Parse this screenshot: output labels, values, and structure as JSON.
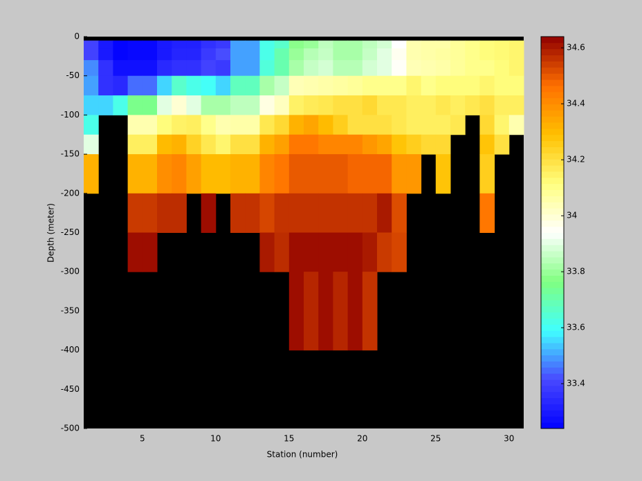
{
  "chart_data": {
    "type": "heatmap",
    "xlabel": "Station (number)",
    "ylabel": "Depth (meter)",
    "x_edges": [
      1,
      2,
      3,
      4,
      5,
      6,
      7,
      8,
      9,
      10,
      11,
      12,
      13,
      14,
      15,
      16,
      17,
      18,
      19,
      20,
      21,
      22,
      23,
      24,
      25,
      26,
      27,
      28,
      29,
      30,
      31
    ],
    "y_edges": [
      0,
      -5,
      -15,
      -30,
      -50,
      -75,
      -100,
      -125,
      -150,
      -200,
      -250,
      -300,
      -400,
      -500
    ],
    "xlim": [
      1,
      31
    ],
    "ylim": [
      -500,
      0
    ],
    "xticks": [
      5,
      10,
      15,
      20,
      25,
      30
    ],
    "yticks": [
      0,
      -50,
      -100,
      -150,
      -200,
      -250,
      -300,
      -350,
      -400,
      -450,
      -500
    ],
    "clim": [
      33.24,
      34.64
    ],
    "cticks": [
      33.4,
      33.6,
      33.8,
      34,
      34.2,
      34.4,
      34.6
    ],
    "colormap": [
      "#0000ff",
      "#4848ff",
      "#40ffff",
      "#80ff80",
      "#ffffff",
      "#ffff80",
      "#ffc000",
      "#ff7000",
      "#900000"
    ],
    "missing_color": "#000000",
    "z": [
      [
        null,
        null,
        null,
        null,
        null,
        null,
        null,
        null,
        null,
        null,
        null,
        null,
        null,
        null,
        null,
        null,
        null,
        null,
        null,
        null,
        null,
        null,
        null,
        null,
        null,
        null,
        null,
        null,
        null,
        null
      ],
      [
        33.4,
        33.3,
        33.25,
        33.26,
        33.26,
        33.3,
        33.32,
        33.32,
        33.36,
        33.38,
        33.5,
        33.5,
        33.62,
        33.66,
        33.78,
        33.8,
        33.85,
        33.82,
        33.82,
        33.85,
        33.88,
        33.94,
        34.05,
        34.06,
        34.06,
        34.08,
        34.1,
        34.12,
        34.13,
        34.14
      ],
      [
        33.4,
        33.3,
        33.25,
        33.26,
        33.26,
        33.3,
        33.33,
        33.33,
        33.38,
        33.42,
        33.5,
        33.5,
        33.62,
        33.7,
        33.8,
        33.84,
        33.86,
        33.82,
        33.82,
        33.86,
        33.9,
        33.96,
        34.05,
        34.06,
        34.07,
        34.08,
        34.1,
        34.12,
        34.13,
        34.14
      ],
      [
        33.48,
        33.36,
        33.28,
        33.28,
        33.28,
        33.34,
        33.36,
        33.36,
        33.4,
        33.38,
        33.5,
        33.5,
        33.64,
        33.7,
        33.82,
        33.86,
        33.88,
        33.84,
        33.84,
        33.88,
        33.9,
        33.95,
        34.04,
        34.05,
        34.06,
        34.08,
        34.1,
        34.1,
        34.12,
        34.14
      ],
      [
        33.5,
        33.36,
        33.34,
        33.45,
        33.45,
        33.55,
        33.66,
        33.62,
        33.6,
        33.55,
        33.68,
        33.68,
        33.82,
        33.86,
        34.04,
        34.05,
        34.06,
        34.07,
        34.08,
        34.1,
        34.1,
        34.1,
        34.14,
        34.1,
        34.12,
        34.12,
        34.12,
        34.14,
        34.12,
        34.12
      ],
      [
        33.55,
        33.55,
        33.62,
        33.75,
        33.75,
        33.9,
        34.0,
        33.9,
        33.82,
        33.82,
        33.85,
        33.85,
        33.98,
        34.03,
        34.15,
        34.17,
        34.18,
        34.2,
        34.2,
        34.22,
        34.18,
        34.18,
        34.16,
        34.16,
        34.18,
        34.16,
        34.18,
        34.2,
        34.16,
        34.16
      ],
      [
        33.62,
        null,
        null,
        34.05,
        34.05,
        34.12,
        34.15,
        34.16,
        34.1,
        34.05,
        34.06,
        34.06,
        34.18,
        34.22,
        34.32,
        34.35,
        34.3,
        34.25,
        34.2,
        34.2,
        34.2,
        34.18,
        34.16,
        34.16,
        34.16,
        34.18,
        null,
        34.22,
        34.14,
        34.05
      ],
      [
        33.9,
        null,
        null,
        34.16,
        34.16,
        34.3,
        34.32,
        34.24,
        34.18,
        34.14,
        34.2,
        34.2,
        34.32,
        34.36,
        34.45,
        34.45,
        34.42,
        34.42,
        34.42,
        34.38,
        34.35,
        34.28,
        34.25,
        34.22,
        34.22,
        null,
        null,
        34.28,
        34.2,
        null
      ],
      [
        34.32,
        null,
        null,
        34.32,
        34.32,
        34.4,
        34.42,
        34.36,
        34.3,
        34.3,
        34.32,
        34.32,
        34.42,
        34.45,
        34.5,
        34.5,
        34.5,
        34.5,
        34.48,
        34.48,
        34.48,
        34.38,
        34.38,
        null,
        34.28,
        null,
        null,
        34.25,
        null,
        null
      ],
      [
        null,
        null,
        null,
        34.55,
        34.55,
        34.57,
        34.57,
        null,
        34.62,
        null,
        34.56,
        34.56,
        34.53,
        34.56,
        34.56,
        34.56,
        34.56,
        34.56,
        34.56,
        34.56,
        34.6,
        34.52,
        null,
        null,
        null,
        null,
        null,
        34.45,
        null,
        null
      ],
      [
        null,
        null,
        null,
        34.62,
        34.62,
        null,
        null,
        null,
        null,
        null,
        null,
        null,
        34.6,
        34.57,
        34.62,
        34.62,
        34.62,
        34.62,
        34.62,
        34.6,
        34.55,
        34.53,
        null,
        null,
        null,
        null,
        null,
        null,
        null,
        null
      ],
      [
        null,
        null,
        null,
        null,
        null,
        null,
        null,
        null,
        null,
        null,
        null,
        null,
        null,
        null,
        34.62,
        34.58,
        34.62,
        34.58,
        34.62,
        34.56,
        null,
        null,
        null,
        null,
        null,
        null,
        null,
        null,
        null,
        null
      ],
      [
        null,
        null,
        null,
        null,
        null,
        null,
        null,
        null,
        null,
        null,
        null,
        null,
        null,
        null,
        null,
        null,
        null,
        null,
        null,
        null,
        null,
        null,
        null,
        null,
        null,
        null,
        null,
        null,
        null,
        null
      ]
    ]
  }
}
